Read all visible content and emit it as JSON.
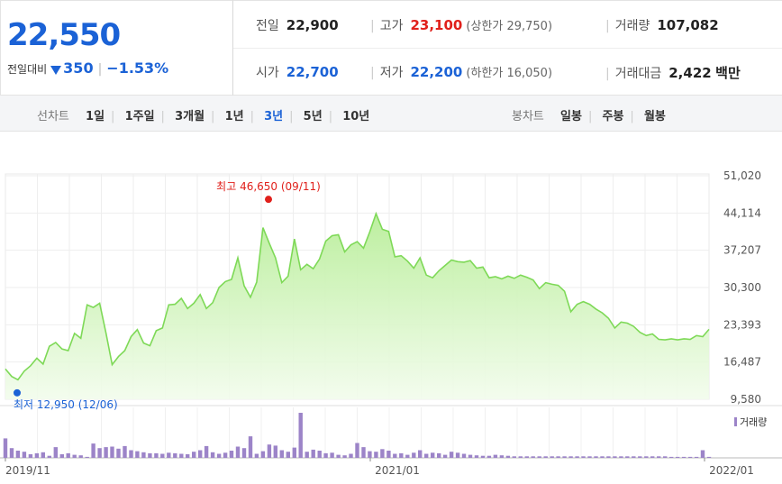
{
  "quote": {
    "price": "22,550",
    "change_label": "전일대비",
    "change_amount": "350",
    "change_rate": "−1.53%",
    "direction_color": "#1b62d6"
  },
  "info": {
    "prev_label": "전일",
    "prev_value": "22,900",
    "high_label": "고가",
    "high_value": "23,100",
    "upper_limit": "(상한가 29,750)",
    "volume_label": "거래량",
    "volume_value": "107,082",
    "open_label": "시가",
    "open_value": "22,700",
    "low_label": "저가",
    "low_value": "22,200",
    "lower_limit": "(하한가 16,050)",
    "amount_label": "거래대금",
    "amount_value": "2,422",
    "amount_unit": "백만"
  },
  "line_tabs": {
    "label": "선차트",
    "items": [
      "1일",
      "1주일",
      "3개월",
      "1년",
      "3년",
      "5년",
      "10년"
    ],
    "active": "3년"
  },
  "candle_tabs": {
    "label": "봉차트",
    "items": [
      "일봉",
      "주봉",
      "월봉"
    ]
  },
  "chart_data": {
    "type": "area",
    "x_ticks": [
      "2019/11",
      "2021/01",
      "2022/01"
    ],
    "y_ticks": [
      "51,020",
      "44,114",
      "37,207",
      "30,300",
      "23,393",
      "16,487",
      "9,580"
    ],
    "ylim": [
      9580,
      51020
    ],
    "high_annotation": "최고 46,650 (09/11)",
    "high_value": 46650,
    "low_annotation": "최저 12,950 (12/06)",
    "low_value": 12950,
    "volume_legend": "거래량",
    "line_color": "#7ed957",
    "series": [
      {
        "values": [
          15200,
          13800,
          13200,
          14800,
          15800,
          17200,
          16100,
          19400,
          20100,
          18900,
          18600,
          21800,
          20900,
          27100,
          26600,
          27400,
          21900,
          16000,
          17500,
          18600,
          21200,
          22500,
          20000,
          19500,
          22300,
          22800,
          27100,
          27200,
          28300,
          26400,
          27400,
          29000,
          26400,
          27500,
          30300,
          31400,
          31800,
          35800,
          30600,
          28500,
          31300,
          41400,
          38500,
          35800,
          31200,
          32400,
          39300,
          33600,
          34600,
          33800,
          35600,
          38900,
          39900,
          40100,
          36900,
          38200,
          38800,
          37600,
          40600,
          44000,
          41100,
          40700,
          36000,
          36200,
          35200,
          33900,
          35800,
          32600,
          32100,
          33400,
          34400,
          35400,
          35100,
          35000,
          35300,
          33900,
          34100,
          32100,
          32300,
          31900,
          32400,
          32000,
          32600,
          32200,
          31700,
          30100,
          31200,
          30900,
          30700,
          29600,
          25800,
          27200,
          27700,
          27200,
          26300,
          25600,
          24600,
          22800,
          23900,
          23700,
          23100,
          22000,
          21400,
          21700,
          20700,
          20600,
          20800,
          20600,
          20800,
          20700,
          21400,
          21200,
          22550
        ]
      }
    ],
    "volume": [
      380,
      190,
      140,
      120,
      70,
      90,
      110,
      40,
      210,
      70,
      90,
      60,
      50,
      20,
      280,
      190,
      210,
      220,
      180,
      230,
      150,
      130,
      110,
      90,
      90,
      80,
      100,
      90,
      80,
      70,
      120,
      150,
      230,
      110,
      80,
      100,
      140,
      220,
      190,
      420,
      80,
      130,
      260,
      240,
      150,
      120,
      200,
      880,
      120,
      160,
      140,
      90,
      100,
      60,
      50,
      80,
      290,
      210,
      130,
      120,
      170,
      140,
      80,
      90,
      60,
      100,
      150,
      80,
      100,
      90,
      60,
      120,
      100,
      80,
      60,
      50,
      40,
      40,
      60,
      50,
      40,
      30,
      30,
      30,
      30,
      30,
      30,
      30,
      30,
      30,
      30,
      30,
      30,
      30,
      30,
      30,
      30,
      30,
      30,
      30,
      30,
      30,
      30,
      30,
      30,
      30,
      20,
      20,
      20,
      20,
      20,
      150,
      20
    ]
  }
}
